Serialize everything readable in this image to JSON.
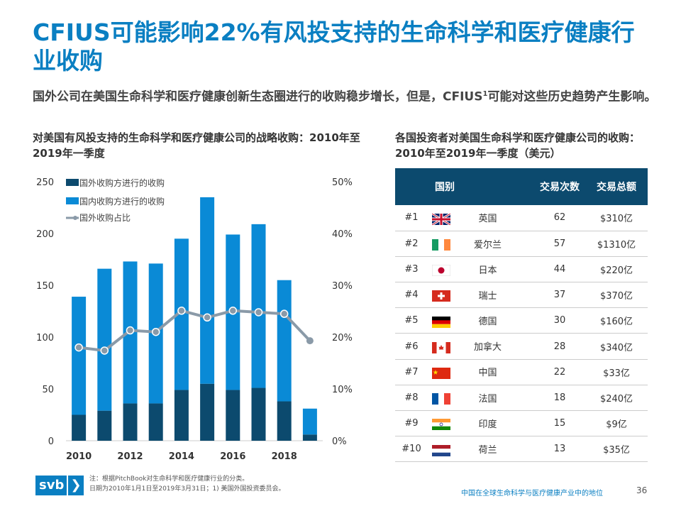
{
  "title": "CFIUS可能影响22%有风投支持的生命科学和医疗健康行业收购",
  "subtitle": {
    "text": "国外公司在美国生命科学和医疗健康创新生态圈进行的收购稳步增长，但是，CFIUS",
    "sup": "1",
    "text2": "可能对这些历史趋势产生影响。"
  },
  "left_title": "对美国有风投支持的生命科学和医疗健康公司的战略收购：2010年至2019年一季度",
  "right_title": "各国投资者对美国生命科学和医疗健康公司的收购：2010年至2019年一季度（美元）",
  "chart_data": {
    "type": "bar",
    "stacked": true,
    "categories": [
      "2010",
      "2011",
      "2012",
      "2013",
      "2014",
      "2015",
      "2016",
      "2017",
      "2018",
      "2019"
    ],
    "x_tick_labels": [
      "2010",
      "2012",
      "2014",
      "2016",
      "2018"
    ],
    "series": [
      {
        "name": "国外收购方进行的收购",
        "values": [
          25,
          29,
          36,
          36,
          49,
          55,
          49,
          51,
          38,
          6
        ],
        "color": "#0c4a6e"
      },
      {
        "name": "国内收购方进行的收购",
        "values": [
          114,
          137,
          137,
          135,
          146,
          180,
          150,
          158,
          117,
          25
        ],
        "color": "#0a8ad6"
      },
      {
        "name": "国外收购占比",
        "type": "line",
        "axis": "right",
        "values": [
          18,
          17.4,
          21.3,
          21,
          25.1,
          23.8,
          25.1,
          24.8,
          24.5,
          19.3
        ],
        "color": "#8a9aa8"
      }
    ],
    "ylim": [
      0,
      250
    ],
    "yticks": [
      "0",
      "50",
      "100",
      "150",
      "200",
      "250"
    ],
    "y2lim": [
      0,
      50
    ],
    "y2ticks": [
      "0%",
      "10%",
      "20%",
      "30%",
      "40%",
      "50%"
    ],
    "legend": "top-left",
    "grid": false
  },
  "table": {
    "headers": [
      "",
      "国别",
      "交易次数",
      "交易总额"
    ],
    "rows": [
      {
        "rank": "#1",
        "flag": "uk",
        "country": "英国",
        "count": "62",
        "total": "$310亿"
      },
      {
        "rank": "#2",
        "flag": "ireland",
        "country": "爱尔兰",
        "count": "57",
        "total": "$1310亿"
      },
      {
        "rank": "#3",
        "flag": "japan",
        "country": "日本",
        "count": "44",
        "total": "$220亿"
      },
      {
        "rank": "#4",
        "flag": "switzerland",
        "country": "瑞士",
        "count": "37",
        "total": "$370亿"
      },
      {
        "rank": "#5",
        "flag": "germany",
        "country": "德国",
        "count": "30",
        "total": "$160亿"
      },
      {
        "rank": "#6",
        "flag": "canada",
        "country": "加拿大",
        "count": "28",
        "total": "$340亿"
      },
      {
        "rank": "#7",
        "flag": "china",
        "country": "中国",
        "count": "22",
        "total": "$33亿"
      },
      {
        "rank": "#8",
        "flag": "france",
        "country": "法国",
        "count": "18",
        "total": "$240亿"
      },
      {
        "rank": "#9",
        "flag": "india",
        "country": "印度",
        "count": "15",
        "total": "$9亿"
      },
      {
        "rank": "#10",
        "flag": "netherlands",
        "country": "荷兰",
        "count": "13",
        "total": "$35亿"
      }
    ]
  },
  "footer": {
    "logo": "svb",
    "logo_arrow": "❯",
    "note1": "注：根据PitchBook对生命科学和医疗健康行业的分类。",
    "note2": "日期为2010年1月1日至2019年3月31日；1) 美国外国投资委员会。",
    "section": "中国在全球生命科学与医疗健康产业中的地位",
    "page": "36"
  }
}
